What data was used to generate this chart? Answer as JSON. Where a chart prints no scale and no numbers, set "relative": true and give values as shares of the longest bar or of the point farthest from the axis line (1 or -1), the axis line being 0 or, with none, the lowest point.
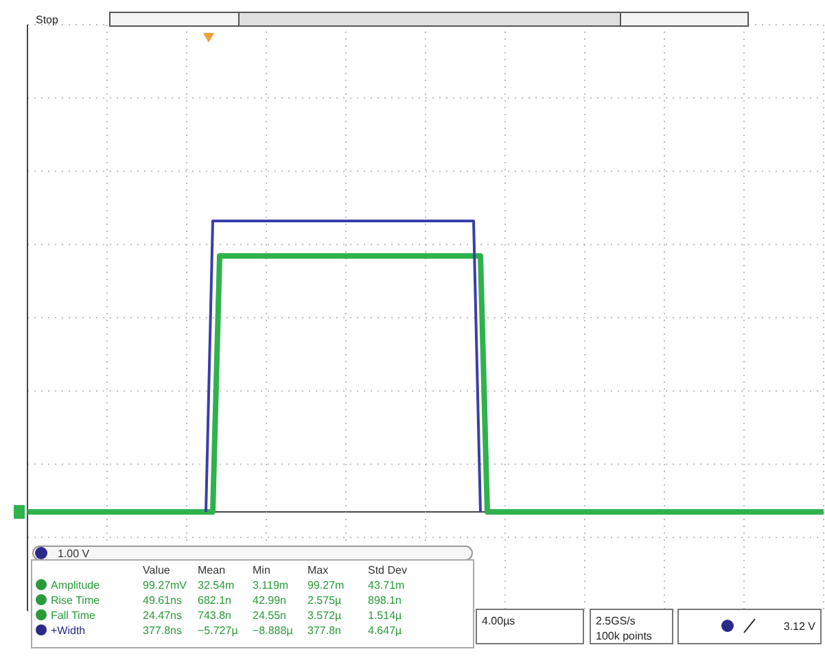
{
  "chart_data": {
    "type": "line",
    "relative": true,
    "grid": true,
    "categories": [
      null,
      null,
      null,
      null,
      null,
      null,
      null,
      null,
      null,
      null,
      null,
      null,
      null,
      null,
      null,
      null,
      null,
      null,
      null,
      null,
      null,
      null,
      null,
      null,
      null,
      null,
      null,
      null,
      null,
      null,
      null,
      null,
      null,
      null,
      null,
      null,
      null,
      null,
      null,
      null,
      null,
      null,
      null,
      null,
      null,
      null,
      null,
      null,
      null,
      null,
      null,
      null,
      null,
      null,
      null,
      null,
      null,
      null,
      null,
      null,
      null,
      null,
      null,
      null,
      null,
      null,
      null,
      null,
      null,
      null,
      null,
      null,
      null,
      null,
      null,
      null,
      null,
      null,
      null,
      null,
      null,
      null,
      null,
      null,
      null,
      null,
      null,
      null,
      null,
      null,
      null,
      null,
      null,
      null,
      null,
      null,
      null,
      null,
      null,
      null,
      null,
      null,
      null,
      null,
      null,
      null,
      null,
      null,
      null,
      null,
      null,
      null,
      null,
      null,
      null,
      null,
      null
    ],
    "series": [
      {
        "color": "#3b3fa8",
        "values": [
          null,
          null,
          null,
          null,
          null,
          null,
          null,
          null,
          null,
          null,
          null,
          null,
          null,
          null,
          null,
          null,
          null,
          null,
          null,
          null,
          null,
          null,
          null,
          null,
          null,
          null,
          0,
          1,
          1,
          1,
          1,
          1,
          1,
          1,
          1,
          1,
          1,
          1,
          1,
          1,
          1,
          1,
          1,
          1,
          1,
          1,
          1,
          1,
          1,
          1,
          1,
          1,
          1,
          1,
          1,
          1,
          1,
          1,
          1,
          1,
          1,
          1,
          1,
          1,
          1,
          1,
          0,
          null,
          null,
          null,
          null,
          null,
          null,
          null,
          null,
          null,
          null,
          null,
          null,
          null,
          null,
          null,
          null,
          null,
          null,
          null,
          null,
          null,
          null,
          null,
          null,
          null,
          null,
          null,
          null,
          null,
          null,
          null,
          null,
          null,
          null,
          null,
          null,
          null,
          null,
          null,
          null,
          null,
          null,
          null,
          null,
          null,
          null,
          null,
          null,
          null,
          null
        ]
      },
      {
        "color": "#2fb24c",
        "values": [
          0,
          0,
          0,
          0,
          0,
          0,
          0,
          0,
          0,
          0,
          0,
          0,
          0,
          0,
          0,
          0,
          0,
          0,
          0,
          0,
          0,
          0,
          0,
          0,
          0,
          0,
          0,
          0,
          0.88,
          0.88,
          0.88,
          0.88,
          0.88,
          0.88,
          0.88,
          0.88,
          0.88,
          0.88,
          0.88,
          0.88,
          0.88,
          0.88,
          0.88,
          0.88,
          0.88,
          0.88,
          0.88,
          0.88,
          0.88,
          0.88,
          0.88,
          0.88,
          0.88,
          0.88,
          0.88,
          0.88,
          0.88,
          0.88,
          0.88,
          0.88,
          0.88,
          0.88,
          0.88,
          0.88,
          0.88,
          0.88,
          0.88,
          0,
          0,
          0,
          0,
          0,
          0,
          0,
          0,
          0,
          0,
          0,
          0,
          0,
          0,
          0,
          0,
          0,
          0,
          0,
          0,
          0,
          0,
          0,
          0,
          0,
          0,
          0,
          0,
          0,
          0,
          0,
          0,
          0,
          0,
          0,
          0,
          0,
          0,
          0,
          0,
          0,
          0,
          0,
          0,
          0,
          0,
          0,
          0,
          0,
          0
        ]
      }
    ],
    "annotations": [
      "Stop",
      "1.00 V",
      "Value",
      "Mean",
      "Min",
      "Max",
      "Std Dev",
      "Amplitude",
      "99.27mV",
      "32.54m",
      "3.119m",
      "99.27m",
      "43.71m",
      "Rise Time",
      "49.61ns",
      "682.1n",
      "42.99n",
      "2.575µ",
      "898.1n",
      "Fall Time",
      "24.47ns",
      "743.8n",
      "24.55n",
      "3.572µ",
      "1.514µ",
      "+Width",
      "377.8ns",
      "−5.727µ",
      "−8.888µ",
      "377.8n",
      "4.647µ",
      "4.00µs",
      "2.5GS/s",
      "100k points",
      "3.12 V"
    ]
  }
}
